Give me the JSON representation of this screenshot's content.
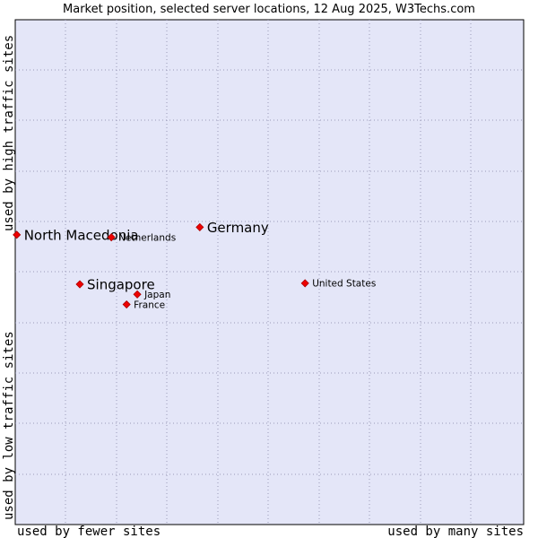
{
  "chart_data": {
    "type": "scatter",
    "title": "Market position, selected server locations, 12 Aug 2025, W3Techs.com",
    "xlabel_low": "used by fewer sites",
    "xlabel_high": "used by many sites",
    "ylabel_low": "used by low traffic sites",
    "ylabel_high": "used by high traffic sites",
    "xlim": [
      0,
      100
    ],
    "ylim": [
      0,
      100
    ],
    "grid": true,
    "colors": {
      "plot_background": "#e4e6f8",
      "grid": "#9a9ab8",
      "border": "#000000",
      "marker": "#ee0000"
    },
    "points": [
      {
        "label": "North Macedonia",
        "x": 0.3,
        "y": 57.4,
        "emphasis": true
      },
      {
        "label": "Netherlands",
        "x": 18.9,
        "y": 56.9,
        "emphasis": false
      },
      {
        "label": "Germany",
        "x": 36.3,
        "y": 58.9,
        "emphasis": true
      },
      {
        "label": "Singapore",
        "x": 12.7,
        "y": 47.6,
        "emphasis": true
      },
      {
        "label": "Japan",
        "x": 24.0,
        "y": 45.6,
        "emphasis": false
      },
      {
        "label": "France",
        "x": 21.9,
        "y": 43.6,
        "emphasis": false
      },
      {
        "label": "United States",
        "x": 57.0,
        "y": 47.8,
        "emphasis": false
      }
    ]
  }
}
